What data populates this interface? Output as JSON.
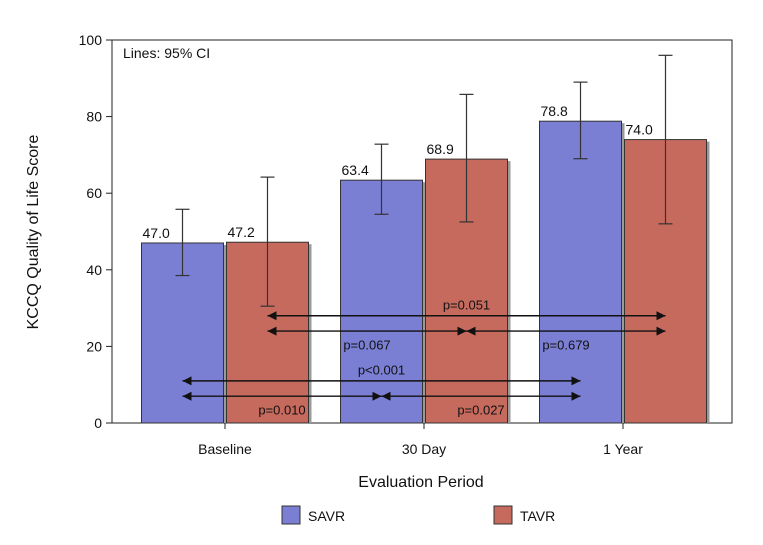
{
  "chart_data": {
    "type": "bar",
    "note": "Lines: 95% CI",
    "xlabel": "Evaluation Period",
    "ylabel": "KCCQ Quality of Life Score",
    "ylim": [
      0,
      100
    ],
    "yticks": [
      0,
      20,
      40,
      60,
      80,
      100
    ],
    "categories": [
      "Baseline",
      "30 Day",
      "1 Year"
    ],
    "series": [
      {
        "name": "SAVR",
        "color": "#7b7fd4",
        "values": [
          47.0,
          63.4,
          78.8
        ],
        "labels": [
          "47.0",
          "63.4",
          "78.8"
        ],
        "ci_low": [
          38.5,
          54.5,
          69.0
        ],
        "ci_high": [
          55.8,
          72.8,
          89.0
        ]
      },
      {
        "name": "TAVR",
        "color": "#c76a5e",
        "values": [
          47.2,
          68.9,
          74.0
        ],
        "labels": [
          "47.2",
          "68.9",
          "74.0"
        ],
        "ci_low": [
          30.5,
          52.5,
          52.0
        ],
        "ci_high": [
          64.2,
          85.8,
          96.0
        ]
      }
    ],
    "comparisons": [
      {
        "label": "p=0.051",
        "series": "TAVR",
        "from": "Baseline",
        "to": "1 Year",
        "y": 28.0,
        "label_y": 31.0
      },
      {
        "label": "p=0.067",
        "series": "TAVR",
        "from": "Baseline",
        "to": "30 Day",
        "y": 24.0,
        "label_y": 20.5
      },
      {
        "label": "p=0.679",
        "series": "TAVR",
        "from": "30 Day",
        "to": "1 Year",
        "y": 24.0,
        "label_y": 20.5
      },
      {
        "label": "p<0.001",
        "series": "SAVR",
        "from": "Baseline",
        "to": "1 Year",
        "y": 11.0,
        "label_y": 14.0
      },
      {
        "label": "p=0.010",
        "series": "SAVR",
        "from": "Baseline",
        "to": "30 Day",
        "y": 7.0,
        "label_y": 3.5
      },
      {
        "label": "p=0.027",
        "series": "SAVR",
        "from": "30 Day",
        "to": "1 Year",
        "y": 7.0,
        "label_y": 3.5
      }
    ],
    "legend_position": "bottom"
  }
}
